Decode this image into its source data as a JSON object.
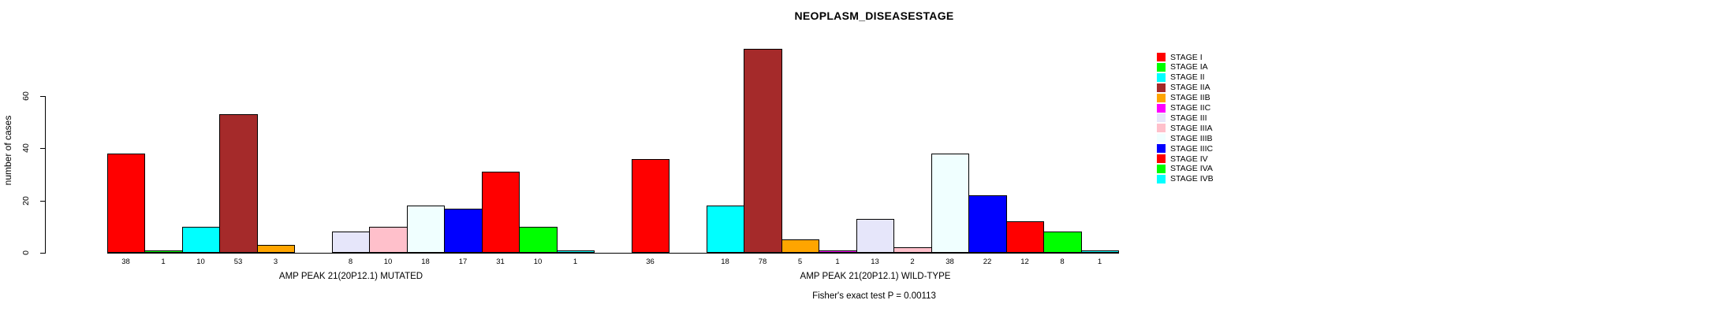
{
  "title": "NEOPLASM_DISEASESTAGE",
  "footer": "Fisher's exact test P = 0.00113",
  "y_axis": {
    "label": "number of cases",
    "ticks": [
      0,
      20,
      40,
      60
    ]
  },
  "legend": {
    "entries": [
      {
        "label": "STAGE I",
        "color": "#FF0000"
      },
      {
        "label": "STAGE IA",
        "color": "#00FF00"
      },
      {
        "label": "STAGE II",
        "color": "#00FFFF"
      },
      {
        "label": "STAGE IIA",
        "color": "#A52A2A"
      },
      {
        "label": "STAGE IIB",
        "color": "#FFA500"
      },
      {
        "label": "STAGE IIC",
        "color": "#FF00FF"
      },
      {
        "label": "STAGE III",
        "color": "#E6E6FA"
      },
      {
        "label": "STAGE IIIA",
        "color": "#FFC0CB"
      },
      {
        "label": "STAGE IIIB",
        "color": "#F0FFFF"
      },
      {
        "label": "STAGE IIIC",
        "color": "#0000FF"
      },
      {
        "label": "STAGE IV",
        "color": "#FF0000"
      },
      {
        "label": "STAGE IVA",
        "color": "#00FF00"
      },
      {
        "label": "STAGE IVB",
        "color": "#00FFFF"
      }
    ]
  },
  "chart_data": {
    "type": "bar",
    "title": "NEOPLASM_DISEASESTAGE",
    "ylabel": "number of cases",
    "ylim": [
      0,
      60
    ],
    "grid": false,
    "legend_position": "top-right",
    "categories": [
      "STAGE I",
      "STAGE IA",
      "STAGE II",
      "STAGE IIA",
      "STAGE IIB",
      "STAGE IIC",
      "STAGE III",
      "STAGE IIIA",
      "STAGE IIIB",
      "STAGE IIIC",
      "STAGE IV",
      "STAGE IVA",
      "STAGE IVB"
    ],
    "colors": [
      "#FF0000",
      "#00FF00",
      "#00FFFF",
      "#A52A2A",
      "#FFA500",
      "#FF00FF",
      "#E6E6FA",
      "#FFC0CB",
      "#F0FFFF",
      "#0000FF",
      "#FF0000",
      "#00FF00",
      "#00FFFF"
    ],
    "groups": [
      {
        "label": "AMP PEAK 21(20P12.1) MUTATED",
        "values": [
          38,
          1,
          10,
          53,
          3,
          0,
          8,
          10,
          18,
          17,
          31,
          10,
          1
        ]
      },
      {
        "label": "AMP PEAK 21(20P12.1) WILD-TYPE",
        "values": [
          36,
          0,
          18,
          78,
          5,
          1,
          13,
          2,
          38,
          22,
          12,
          8,
          1
        ]
      }
    ],
    "annotation": "Fisher's exact test P = 0.00113"
  }
}
